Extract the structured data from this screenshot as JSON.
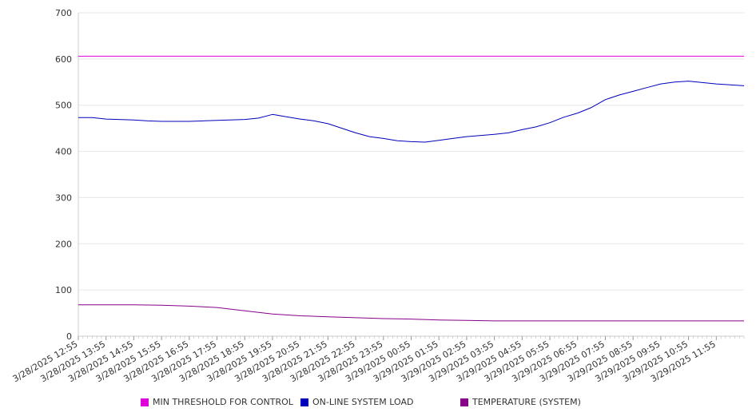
{
  "chart_data": {
    "type": "line",
    "ylim": [
      0,
      700
    ],
    "y_ticks": [
      0,
      100,
      200,
      300,
      400,
      500,
      600,
      700
    ],
    "x_range": [
      "3/28/2025 12:55",
      "3/29/2025 12:55"
    ],
    "x_tick_labels": [
      "3/28/2025 12:55",
      "3/28/2025 13:55",
      "3/28/2025 14:55",
      "3/28/2025 15:55",
      "3/28/2025 16:55",
      "3/28/2025 17:55",
      "3/28/2025 18:55",
      "3/28/2025 19:55",
      "3/28/2025 20:55",
      "3/28/2025 21:55",
      "3/28/2025 22:55",
      "3/28/2025 23:55",
      "3/29/2025 00:55",
      "3/29/2025 01:55",
      "3/29/2025 02:55",
      "3/29/2025 03:55",
      "3/29/2025 04:55",
      "3/29/2025 05:55",
      "3/29/2025 06:55",
      "3/29/2025 07:55",
      "3/29/2025 08:55",
      "3/29/2025 09:55",
      "3/29/2025 10:55",
      "3/29/2025 11:55"
    ],
    "grid": true,
    "legend_position": "bottom",
    "series": [
      {
        "name": "MIN THRESHOLD FOR CONTROL",
        "color": "#dd00dd",
        "points": [
          [
            "3/28/2025 12:55",
            606
          ],
          [
            "3/29/2025 12:55",
            606
          ]
        ]
      },
      {
        "name": "ON-LINE SYSTEM LOAD",
        "color": "#0000bb",
        "points": [
          [
            "3/28/2025 12:55",
            473
          ],
          [
            "3/28/2025 13:25",
            473
          ],
          [
            "3/28/2025 13:55",
            470
          ],
          [
            "3/28/2025 14:55",
            468
          ],
          [
            "3/28/2025 15:25",
            466
          ],
          [
            "3/28/2025 15:55",
            465
          ],
          [
            "3/28/2025 16:55",
            465
          ],
          [
            "3/28/2025 17:55",
            467
          ],
          [
            "3/28/2025 18:55",
            469
          ],
          [
            "3/28/2025 19:25",
            472
          ],
          [
            "3/28/2025 19:55",
            480
          ],
          [
            "3/28/2025 20:25",
            475
          ],
          [
            "3/28/2025 20:55",
            470
          ],
          [
            "3/28/2025 21:25",
            466
          ],
          [
            "3/28/2025 21:55",
            460
          ],
          [
            "3/28/2025 22:25",
            450
          ],
          [
            "3/28/2025 22:55",
            440
          ],
          [
            "3/28/2025 23:25",
            432
          ],
          [
            "3/28/2025 23:55",
            428
          ],
          [
            "3/29/2025 00:25",
            423
          ],
          [
            "3/29/2025 00:55",
            421
          ],
          [
            "3/29/2025 01:25",
            420
          ],
          [
            "3/29/2025 01:55",
            424
          ],
          [
            "3/29/2025 02:25",
            428
          ],
          [
            "3/29/2025 02:55",
            432
          ],
          [
            "3/29/2025 03:55",
            437
          ],
          [
            "3/29/2025 04:25",
            440
          ],
          [
            "3/29/2025 04:55",
            447
          ],
          [
            "3/29/2025 05:25",
            453
          ],
          [
            "3/29/2025 05:55",
            462
          ],
          [
            "3/29/2025 06:25",
            474
          ],
          [
            "3/29/2025 06:55",
            483
          ],
          [
            "3/29/2025 07:25",
            495
          ],
          [
            "3/29/2025 07:55",
            512
          ],
          [
            "3/29/2025 08:25",
            522
          ],
          [
            "3/29/2025 08:55",
            530
          ],
          [
            "3/29/2025 09:25",
            538
          ],
          [
            "3/29/2025 09:55",
            546
          ],
          [
            "3/29/2025 10:25",
            550
          ],
          [
            "3/29/2025 10:55",
            552
          ],
          [
            "3/29/2025 11:25",
            549
          ],
          [
            "3/29/2025 11:55",
            546
          ],
          [
            "3/29/2025 12:25",
            544
          ],
          [
            "3/29/2025 12:55",
            542
          ]
        ]
      },
      {
        "name": "TEMPERATURE (SYSTEM)",
        "color": "#880088",
        "points": [
          [
            "3/28/2025 12:55",
            68
          ],
          [
            "3/28/2025 14:55",
            68
          ],
          [
            "3/28/2025 15:55",
            67
          ],
          [
            "3/28/2025 16:55",
            65
          ],
          [
            "3/28/2025 17:55",
            62
          ],
          [
            "3/28/2025 18:55",
            55
          ],
          [
            "3/28/2025 19:55",
            48
          ],
          [
            "3/28/2025 20:55",
            44
          ],
          [
            "3/28/2025 21:55",
            42
          ],
          [
            "3/28/2025 22:55",
            40
          ],
          [
            "3/28/2025 23:55",
            38
          ],
          [
            "3/29/2025 00:55",
            37
          ],
          [
            "3/29/2025 01:55",
            35
          ],
          [
            "3/29/2025 02:55",
            34
          ],
          [
            "3/29/2025 03:55",
            33
          ],
          [
            "3/29/2025 12:55",
            33
          ]
        ]
      }
    ]
  }
}
